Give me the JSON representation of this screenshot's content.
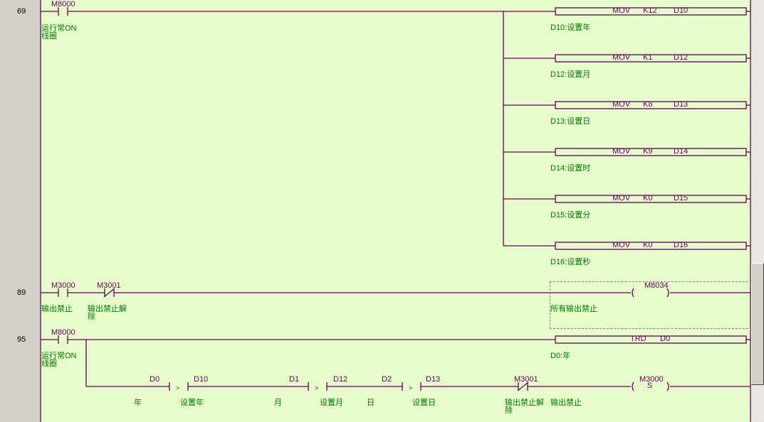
{
  "colors": {
    "background": "#e6fccb",
    "line": "#600060",
    "comment": "#007800",
    "gutter": "#d4d0c8"
  },
  "rungs": [
    {
      "step": "69",
      "contacts": [
        {
          "device": "M8000",
          "type": "NO",
          "comment": "运行常ON\n线圈"
        }
      ],
      "instructions": [
        {
          "op": "MOV",
          "src": "K12",
          "dst": "D10",
          "comment": "D10:设置年"
        },
        {
          "op": "MOV",
          "src": "K1",
          "dst": "D12",
          "comment": "D12:设置月"
        },
        {
          "op": "MOV",
          "src": "K8",
          "dst": "D13",
          "comment": "D13:设置日"
        },
        {
          "op": "MOV",
          "src": "K9",
          "dst": "D14",
          "comment": "D14:设置时"
        },
        {
          "op": "MOV",
          "src": "K0",
          "dst": "D15",
          "comment": "D15:设置分"
        },
        {
          "op": "MOV",
          "src": "K0",
          "dst": "D16",
          "comment": "D16:设置秒"
        }
      ]
    },
    {
      "step": "89",
      "contacts": [
        {
          "device": "M3000",
          "type": "NO",
          "comment": "输出禁止"
        },
        {
          "device": "M3001",
          "type": "NC",
          "comment": "输出禁止解\n除"
        }
      ],
      "coil": {
        "device": "M8034",
        "comment": "所有输出禁止"
      }
    },
    {
      "step": "95",
      "contacts": [
        {
          "device": "M8000",
          "type": "NO",
          "comment": "运行常ON\n线圈"
        }
      ],
      "instruction": {
        "op": "TRD",
        "dst": "D0",
        "comment": "D0:年"
      },
      "branch": {
        "compares": [
          {
            "left": "D0",
            "op": ">",
            "right": "D10",
            "left_comment": "年",
            "right_comment": "设置年"
          },
          {
            "left": "D1",
            "op": ">",
            "right": "D12",
            "left_comment": "月",
            "right_comment": "设置月"
          },
          {
            "left": "D2",
            "op": ">",
            "right": "D13",
            "left_comment": "日",
            "right_comment": "设置日"
          }
        ],
        "contact": {
          "device": "M3001",
          "type": "NC",
          "comment": "输出禁止解\n除"
        },
        "coil": {
          "device": "M3000",
          "mode": "S",
          "comment": "输出禁止"
        }
      }
    }
  ]
}
